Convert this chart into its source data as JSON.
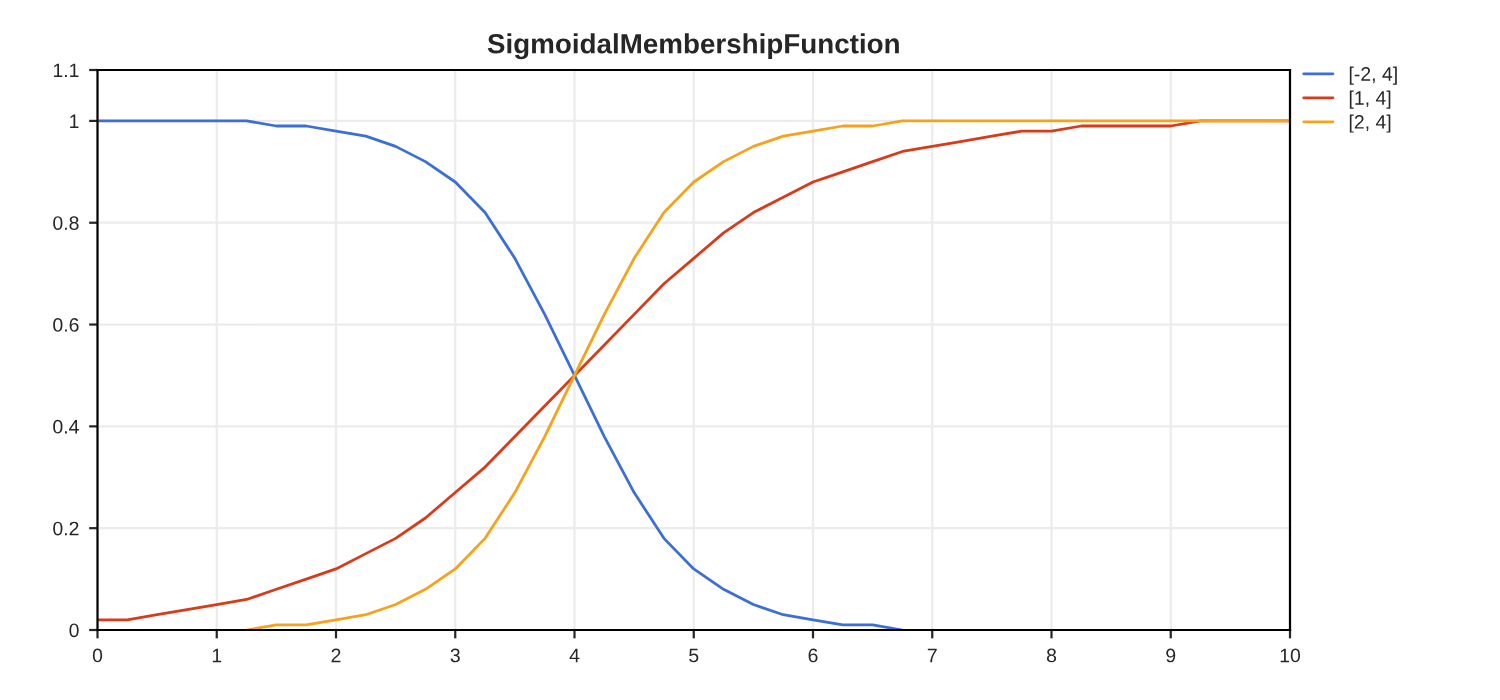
{
  "chart_data": {
    "type": "line",
    "title": "SigmoidalMembershipFunction",
    "x": [
      0,
      0.25,
      0.5,
      0.75,
      1,
      1.25,
      1.5,
      1.75,
      2,
      2.25,
      2.5,
      2.75,
      3,
      3.25,
      3.5,
      3.75,
      4,
      4.25,
      4.5,
      4.75,
      5,
      5.25,
      5.5,
      5.75,
      6,
      6.25,
      6.5,
      6.75,
      7,
      7.25,
      7.5,
      7.75,
      8,
      8.25,
      8.5,
      8.75,
      9,
      9.25,
      9.5,
      9.75,
      10
    ],
    "series": [
      {
        "name": "[-2, 4]",
        "color": "#3c6fd6",
        "values": [
          1,
          1,
          1,
          1,
          1,
          1,
          0.99,
          0.99,
          0.98,
          0.97,
          0.95,
          0.92,
          0.88,
          0.82,
          0.73,
          0.62,
          0.5,
          0.38,
          0.27,
          0.18,
          0.12,
          0.08,
          0.05,
          0.03,
          0.02,
          0.01,
          0.01,
          0,
          null,
          null,
          null,
          null,
          null,
          null,
          null,
          null,
          null,
          null,
          null,
          null,
          null
        ]
      },
      {
        "name": "[1, 4]",
        "color": "#d83b1a",
        "values": [
          0.02,
          0.02,
          0.03,
          0.04,
          0.05,
          0.06,
          0.08,
          0.1,
          0.12,
          0.15,
          0.18,
          0.22,
          0.27,
          0.32,
          0.38,
          0.44,
          0.5,
          0.56,
          0.62,
          0.68,
          0.73,
          0.78,
          0.82,
          0.85,
          0.88,
          0.9,
          0.92,
          0.94,
          0.95,
          0.96,
          0.97,
          0.98,
          0.98,
          0.99,
          0.99,
          0.99,
          0.99,
          1,
          1,
          1,
          1
        ]
      },
      {
        "name": "[2, 4]",
        "color": "#f7a21b",
        "values": [
          null,
          null,
          null,
          null,
          null,
          0,
          0.01,
          0.01,
          0.02,
          0.03,
          0.05,
          0.08,
          0.12,
          0.18,
          0.27,
          0.38,
          0.5,
          0.62,
          0.73,
          0.82,
          0.88,
          0.92,
          0.95,
          0.97,
          0.98,
          0.99,
          0.99,
          1,
          1,
          1,
          1,
          1,
          1,
          1,
          1,
          1,
          1,
          1,
          1,
          1,
          1
        ]
      }
    ],
    "xlim": [
      0,
      10
    ],
    "xticks": [
      0,
      1,
      2,
      3,
      4,
      5,
      6,
      7,
      8,
      9,
      10
    ],
    "ylim": [
      0,
      1.1
    ],
    "yticks": [
      0,
      0.2,
      0.4,
      0.6,
      0.8,
      1,
      1.1
    ],
    "grid": true,
    "legend": "top right",
    "marker": "none",
    "line_style": "solid"
  }
}
